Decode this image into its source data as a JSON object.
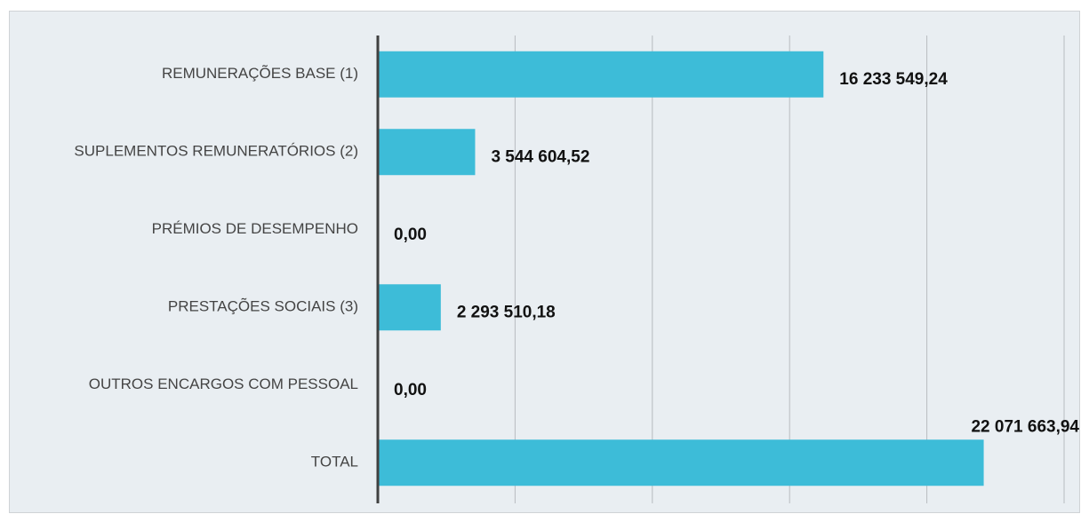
{
  "chart_data": {
    "type": "barh",
    "categories": [
      "REMUNERAÇÕES BASE (1)",
      "SUPLEMENTOS REMUNERATÓRIOS (2)",
      "PRÉMIOS DE DESEMPENHO",
      "PRESTAÇÕES SOCIAIS (3)",
      "OUTROS ENCARGOS COM PESSOAL",
      "TOTAL"
    ],
    "values": [
      16233549.24,
      3544604.52,
      0,
      2293510.18,
      0,
      22071663.94
    ],
    "value_labels": [
      "16 233 549,24",
      "3 544 604,52",
      "0,00",
      "2 293 510,18",
      "0,00",
      "22 071 663,94"
    ],
    "color": "#3dbcd8",
    "xlim": [
      0,
      25000000
    ],
    "xticks": [
      0,
      5000000,
      10000000,
      15000000,
      20000000,
      25000000
    ],
    "grid": true
  }
}
